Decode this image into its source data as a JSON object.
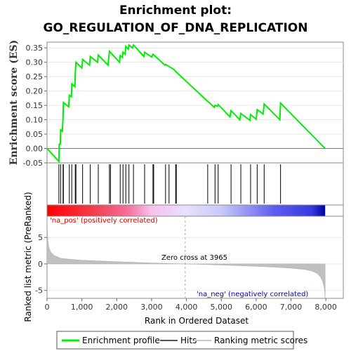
{
  "chart_data": [
    {
      "type": "line",
      "title": "Enrichment plot:",
      "subtitle": "GO_REGULATION_OF_DNA_REPLICATION",
      "ylabel": "Enrichment score (ES)",
      "ylim": [
        -0.05,
        0.37
      ],
      "yticks": [
        -0.05,
        0.0,
        0.05,
        0.1,
        0.15,
        0.2,
        0.25,
        0.3,
        0.35
      ],
      "ytick_labels": [
        "-0.05",
        "0.00",
        "0.05",
        "0.10",
        "0.15",
        "0.20",
        "0.25",
        "0.30",
        "0.35"
      ],
      "series": [
        {
          "name": "Enrichment profile",
          "color": "#00ee00",
          "points": [
            [
              0,
              0.0
            ],
            [
              340,
              -0.045
            ],
            [
              350,
              0.015
            ],
            [
              380,
              0.015
            ],
            [
              390,
              0.065
            ],
            [
              440,
              0.06
            ],
            [
              460,
              0.11
            ],
            [
              470,
              0.16
            ],
            [
              620,
              0.145
            ],
            [
              640,
              0.185
            ],
            [
              700,
              0.18
            ],
            [
              710,
              0.225
            ],
            [
              800,
              0.215
            ],
            [
              810,
              0.26
            ],
            [
              830,
              0.3
            ],
            [
              1000,
              0.28
            ],
            [
              1020,
              0.31
            ],
            [
              1220,
              0.29
            ],
            [
              1240,
              0.32
            ],
            [
              1450,
              0.3
            ],
            [
              1470,
              0.325
            ],
            [
              1750,
              0.29
            ],
            [
              1790,
              0.338
            ],
            [
              2080,
              0.3
            ],
            [
              2100,
              0.323
            ],
            [
              2160,
              0.317
            ],
            [
              2180,
              0.335
            ],
            [
              2240,
              0.328
            ],
            [
              2260,
              0.355
            ],
            [
              2330,
              0.345
            ],
            [
              2350,
              0.36
            ],
            [
              2450,
              0.35
            ],
            [
              2480,
              0.36
            ],
            [
              2780,
              0.32
            ],
            [
              2800,
              0.335
            ],
            [
              3000,
              0.318
            ],
            [
              3040,
              0.328
            ],
            [
              3380,
              0.29
            ],
            [
              3400,
              0.293
            ],
            [
              3500,
              0.285
            ],
            [
              3640,
              0.275
            ],
            [
              3690,
              0.268
            ],
            [
              4600,
              0.165
            ],
            [
              4620,
              0.163
            ],
            [
              4800,
              0.143
            ],
            [
              4820,
              0.15
            ],
            [
              4890,
              0.147
            ],
            [
              4910,
              0.153
            ],
            [
              5250,
              0.11
            ],
            [
              5280,
              0.132
            ],
            [
              5530,
              0.1
            ],
            [
              5560,
              0.122
            ],
            [
              5820,
              0.098
            ],
            [
              5840,
              0.118
            ],
            [
              6000,
              0.102
            ],
            [
              6030,
              0.135
            ],
            [
              6200,
              0.12
            ],
            [
              6230,
              0.155
            ],
            [
              6680,
              0.1
            ],
            [
              6700,
              0.158
            ],
            [
              7980,
              0.0
            ]
          ]
        }
      ]
    },
    {
      "type": "hits",
      "name": "Hits",
      "color": "#000000",
      "positions": [
        340,
        390,
        460,
        470,
        640,
        710,
        810,
        830,
        1020,
        1240,
        1470,
        1790,
        1820,
        2100,
        2180,
        2260,
        2350,
        2480,
        2800,
        3040,
        3060,
        3400,
        3500,
        3690,
        3710,
        4610,
        4820,
        4910,
        5280,
        5560,
        5840,
        6030,
        6230,
        6700
      ]
    },
    {
      "type": "heatmap",
      "name": "Ranking metric scores (color bar)",
      "stops": [
        {
          "x": 0,
          "color": "#ff0000"
        },
        {
          "x": 1300,
          "color": "#f23c4c"
        },
        {
          "x": 2300,
          "color": "#f46e9a"
        },
        {
          "x": 3000,
          "color": "#f6c2ec"
        },
        {
          "x": 3965,
          "color": "#e8e0fc"
        },
        {
          "x": 5000,
          "color": "#c8c8f8"
        },
        {
          "x": 5900,
          "color": "#8a8af4"
        },
        {
          "x": 6500,
          "color": "#5e5ef0"
        },
        {
          "x": 7600,
          "color": "#3838e0"
        },
        {
          "x": 7980,
          "color": "#0000a0"
        }
      ]
    },
    {
      "type": "area",
      "name": "Ranking metric scores",
      "color": "#c0c0c0",
      "xlabel": "Rank in Ordered Dataset",
      "ylabel": "Ranked list metric (PreRanked)",
      "xlim": [
        0,
        8500
      ],
      "ylim": [
        -6.5,
        9
      ],
      "xticks": [
        0,
        1000,
        2000,
        3000,
        4000,
        5000,
        6000,
        7000,
        8000
      ],
      "xtick_labels": [
        "0",
        "1,000",
        "2,000",
        "3,000",
        "4,000",
        "5,000",
        "6,000",
        "7,000",
        "8,000"
      ],
      "yticks": [
        -5,
        0,
        5
      ],
      "ytick_labels": [
        "-5",
        "0",
        "5"
      ],
      "points": [
        [
          0,
          9
        ],
        [
          10,
          6.5
        ],
        [
          25,
          4.5
        ],
        [
          50,
          3.2
        ],
        [
          100,
          2.3
        ],
        [
          200,
          1.6
        ],
        [
          400,
          1.05
        ],
        [
          700,
          0.85
        ],
        [
          1000,
          0.7
        ],
        [
          1500,
          0.55
        ],
        [
          2000,
          0.42
        ],
        [
          2500,
          0.3
        ],
        [
          3000,
          0.18
        ],
        [
          3500,
          0.07
        ],
        [
          3965,
          0.0
        ],
        [
          4500,
          -0.1
        ],
        [
          5000,
          -0.22
        ],
        [
          5500,
          -0.33
        ],
        [
          6000,
          -0.45
        ],
        [
          6500,
          -0.6
        ],
        [
          7000,
          -0.8
        ],
        [
          7400,
          -1.05
        ],
        [
          7600,
          -1.35
        ],
        [
          7750,
          -1.8
        ],
        [
          7850,
          -2.5
        ],
        [
          7920,
          -3.5
        ],
        [
          7960,
          -4.8
        ],
        [
          7980,
          -6.4
        ]
      ],
      "zero_cross": 3965
    }
  ],
  "annotations": {
    "pos": "'na_pos' (positively correlated)",
    "neg": "'na_neg' (negatively correlated)",
    "zero_cross": "Zero cross at 3965"
  },
  "legend": {
    "items": [
      {
        "label": "Enrichment profile",
        "color": "#00ee00"
      },
      {
        "label": "Hits",
        "color": "#555555"
      },
      {
        "label": "Ranking metric scores",
        "color": "#c8c8c8"
      }
    ]
  }
}
